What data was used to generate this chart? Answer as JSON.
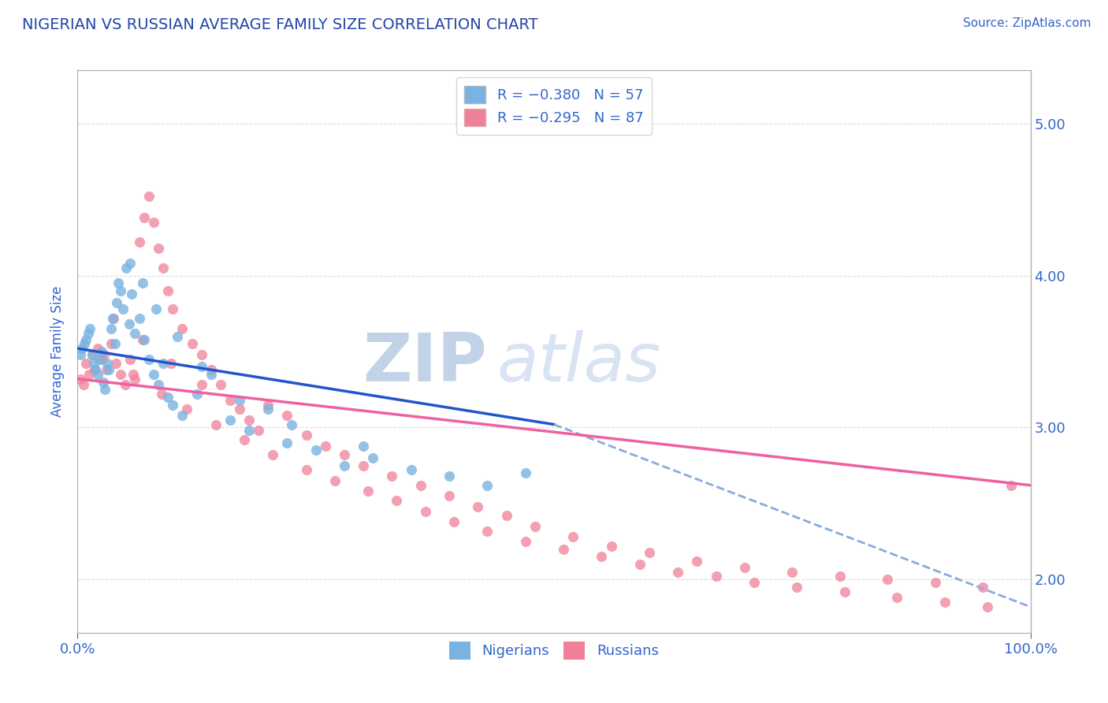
{
  "title": "NIGERIAN VS RUSSIAN AVERAGE FAMILY SIZE CORRELATION CHART",
  "source_text": "Source: ZipAtlas.com",
  "ylabel": "Average Family Size",
  "xlim": [
    0.0,
    100.0
  ],
  "ylim": [
    1.65,
    5.35
  ],
  "yticks": [
    2.0,
    3.0,
    4.0,
    5.0
  ],
  "yticklabels_right": [
    "2.00",
    "3.00",
    "4.00",
    "5.00"
  ],
  "legend_text_color": "#3366cc",
  "nigerian_color": "#7ab3e0",
  "russian_color": "#f08098",
  "nigerian_line_color": "#2255cc",
  "russian_line_color": "#f060a0",
  "dashed_line_color": "#88aadd",
  "watermark_color": "#c8d8f5",
  "title_color": "#2244aa",
  "axis_color": "#aaaaaa",
  "grid_color": "#dddddd",
  "background_color": "#ffffff",
  "blue_line_x0": 0.0,
  "blue_line_y0": 3.52,
  "blue_line_x1": 50.0,
  "blue_line_y1": 3.02,
  "blue_dash_x1": 100.0,
  "blue_dash_y1": 1.82,
  "pink_line_x0": 0.0,
  "pink_line_y0": 3.32,
  "pink_line_x1": 100.0,
  "pink_line_y1": 2.62,
  "nigerian_x": [
    0.3,
    0.5,
    0.7,
    0.9,
    1.1,
    1.3,
    1.5,
    1.7,
    1.9,
    2.1,
    2.3,
    2.5,
    2.7,
    2.9,
    3.1,
    3.3,
    3.5,
    3.7,
    3.9,
    4.1,
    4.3,
    4.5,
    4.8,
    5.1,
    5.4,
    5.7,
    6.0,
    6.5,
    7.0,
    7.5,
    8.0,
    8.5,
    9.0,
    9.5,
    10.0,
    11.0,
    12.5,
    14.0,
    16.0,
    18.0,
    20.0,
    22.0,
    25.0,
    28.0,
    31.0,
    35.0,
    39.0,
    43.0,
    47.0,
    5.5,
    6.8,
    8.2,
    10.5,
    13.0,
    17.0,
    22.5,
    30.0
  ],
  "nigerian_y": [
    3.48,
    3.52,
    3.55,
    3.58,
    3.62,
    3.65,
    3.48,
    3.42,
    3.38,
    3.35,
    3.45,
    3.5,
    3.3,
    3.25,
    3.42,
    3.38,
    3.65,
    3.72,
    3.55,
    3.82,
    3.95,
    3.9,
    3.78,
    4.05,
    3.68,
    3.88,
    3.62,
    3.72,
    3.58,
    3.45,
    3.35,
    3.28,
    3.42,
    3.2,
    3.15,
    3.08,
    3.22,
    3.35,
    3.05,
    2.98,
    3.12,
    2.9,
    2.85,
    2.75,
    2.8,
    2.72,
    2.68,
    2.62,
    2.7,
    4.08,
    3.95,
    3.78,
    3.6,
    3.4,
    3.18,
    3.02,
    2.88
  ],
  "russian_x": [
    0.3,
    0.6,
    0.9,
    1.2,
    1.5,
    1.8,
    2.1,
    2.5,
    3.0,
    3.5,
    4.0,
    4.5,
    5.0,
    5.5,
    6.0,
    6.5,
    7.0,
    7.5,
    8.0,
    8.5,
    9.0,
    9.5,
    10.0,
    11.0,
    12.0,
    13.0,
    14.0,
    15.0,
    16.0,
    17.0,
    18.0,
    19.0,
    20.0,
    22.0,
    24.0,
    26.0,
    28.0,
    30.0,
    33.0,
    36.0,
    39.0,
    42.0,
    45.0,
    48.0,
    52.0,
    56.0,
    60.0,
    65.0,
    70.0,
    75.0,
    80.0,
    85.0,
    90.0,
    95.0,
    98.0,
    2.8,
    5.8,
    8.8,
    11.5,
    14.5,
    17.5,
    20.5,
    24.0,
    27.0,
    30.5,
    33.5,
    36.5,
    39.5,
    43.0,
    47.0,
    51.0,
    55.0,
    59.0,
    63.0,
    67.0,
    71.0,
    75.5,
    80.5,
    86.0,
    91.0,
    95.5,
    3.8,
    6.8,
    9.8,
    13.0
  ],
  "russian_y": [
    3.32,
    3.28,
    3.42,
    3.35,
    3.48,
    3.38,
    3.52,
    3.45,
    3.38,
    3.55,
    3.42,
    3.35,
    3.28,
    3.45,
    3.32,
    4.22,
    4.38,
    4.52,
    4.35,
    4.18,
    4.05,
    3.9,
    3.78,
    3.65,
    3.55,
    3.48,
    3.38,
    3.28,
    3.18,
    3.12,
    3.05,
    2.98,
    3.15,
    3.08,
    2.95,
    2.88,
    2.82,
    2.75,
    2.68,
    2.62,
    2.55,
    2.48,
    2.42,
    2.35,
    2.28,
    2.22,
    2.18,
    2.12,
    2.08,
    2.05,
    2.02,
    2.0,
    1.98,
    1.95,
    2.62,
    3.48,
    3.35,
    3.22,
    3.12,
    3.02,
    2.92,
    2.82,
    2.72,
    2.65,
    2.58,
    2.52,
    2.45,
    2.38,
    2.32,
    2.25,
    2.2,
    2.15,
    2.1,
    2.05,
    2.02,
    1.98,
    1.95,
    1.92,
    1.88,
    1.85,
    1.82,
    3.72,
    3.58,
    3.42,
    3.28
  ]
}
